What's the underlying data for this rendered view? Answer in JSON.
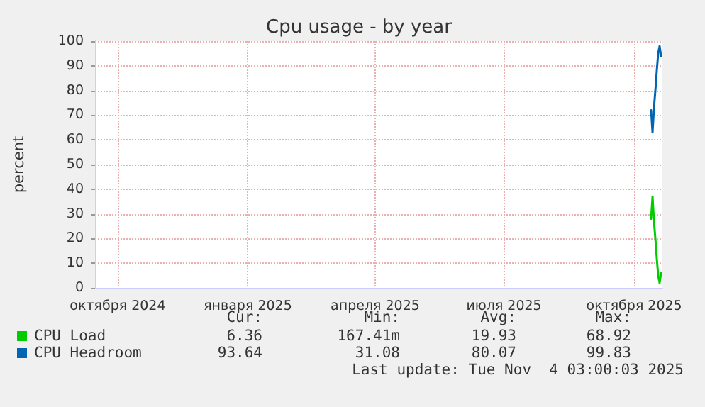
{
  "chart_data": {
    "type": "line",
    "title": "Cpu usage - by year",
    "ylabel": "percent",
    "x": [
      "2025-10-27",
      "2025-10-28",
      "2025-10-29",
      "2025-10-30",
      "2025-10-31",
      "2025-11-01",
      "2025-11-02",
      "2025-11-03"
    ],
    "series": [
      {
        "name": "CPU Load",
        "color": "#00cc00",
        "values": [
          28,
          37,
          27,
          20,
          12,
          5,
          2,
          6
        ]
      },
      {
        "name": "CPU Headroom",
        "color": "#0066b3",
        "values": [
          72,
          63,
          73,
          80,
          88,
          95,
          98,
          94
        ]
      }
    ],
    "xlim": [
      "2024-09-29",
      "2025-11-04"
    ],
    "xticks": [
      {
        "value": "2024-10-15",
        "label": "октября 2024"
      },
      {
        "value": "2025-01-15",
        "label": "января 2025"
      },
      {
        "value": "2025-04-15",
        "label": "апреля 2025"
      },
      {
        "value": "2025-07-15",
        "label": "июля 2025"
      },
      {
        "value": "2025-10-15",
        "label": "октября 2025"
      }
    ],
    "ylim": [
      0,
      100
    ],
    "yticks": [
      0,
      10,
      20,
      30,
      40,
      50,
      60,
      70,
      80,
      90,
      100
    ],
    "grid": true,
    "legend": "bottom left",
    "marker": "none",
    "line_style": "solid",
    "annotations": [
      "Cur:",
      "Min:",
      "Avg:",
      "Max:",
      "6.36",
      "167.41m",
      "19.93",
      "68.92",
      "93.64",
      "31.08",
      "80.07",
      "99.83",
      "Last update: Tue Nov  4 03:00:03 2025"
    ]
  }
}
